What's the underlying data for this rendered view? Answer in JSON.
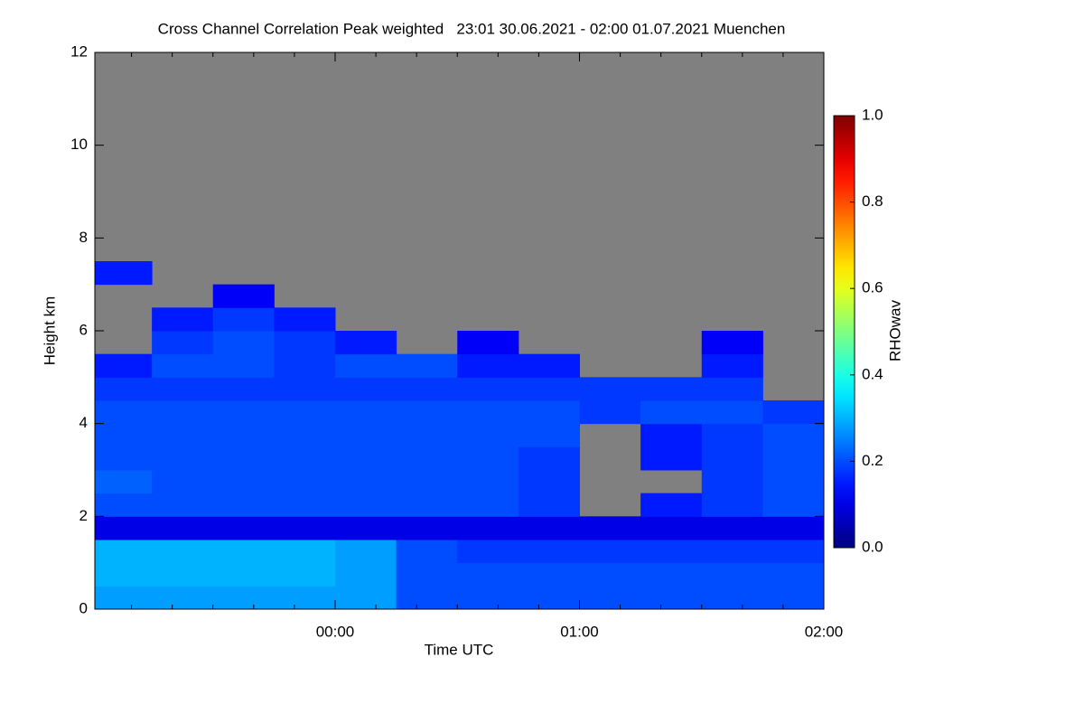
{
  "chart_data": {
    "type": "heatmap",
    "title": "Cross Channel Correlation Peak weighted   23:01 30.06.2021 - 02:00 01.07.2021 Muenchen",
    "xlabel": "Time UTC",
    "ylabel": "Height km",
    "colorbar_label": "RHOwav",
    "xlim": [
      0.0167,
      3.0
    ],
    "xticks": [
      {
        "value": 1,
        "label": "00:00"
      },
      {
        "value": 2,
        "label": "01:00"
      },
      {
        "value": 3,
        "label": "02:00"
      }
    ],
    "xminorticks": [
      0.1667,
      0.3333,
      0.5,
      0.6667,
      0.8333,
      1.1667,
      1.3333,
      1.5,
      1.6667,
      1.8333,
      2.1667,
      2.3333,
      2.5,
      2.6667,
      2.8333
    ],
    "ylim": [
      0,
      12
    ],
    "yticks": [
      0,
      2,
      4,
      6,
      8,
      10,
      12
    ],
    "clim": [
      0,
      1
    ],
    "cticks": [
      {
        "value": 0,
        "label": "0.0"
      },
      0.2,
      0.4,
      0.6,
      0.8,
      {
        "value": 1,
        "label": "1.0"
      }
    ],
    "colormap": "jet",
    "nodata_color": "#808080",
    "xbins": [
      0.0167,
      0.25,
      0.5,
      0.75,
      1,
      1.25,
      1.5,
      1.75,
      2,
      2.25,
      2.5,
      2.75,
      3
    ],
    "ybins": [
      0,
      0.5,
      1,
      1.5,
      2,
      2.5,
      3,
      3.5,
      4,
      4.5,
      5,
      5.5,
      6,
      6.5,
      7,
      7.5,
      8
    ],
    "z": [
      [
        0.28,
        0.28,
        0.28,
        0.28,
        0.28,
        0.2,
        0.2,
        0.2,
        0.2,
        0.2,
        0.2,
        0.2
      ],
      [
        0.3,
        0.3,
        0.3,
        0.3,
        0.28,
        0.2,
        0.2,
        0.2,
        0.2,
        0.2,
        0.2,
        0.2
      ],
      [
        0.3,
        0.3,
        0.3,
        0.3,
        0.28,
        0.2,
        0.18,
        0.18,
        0.18,
        0.18,
        0.18,
        0.18
      ],
      [
        0.1,
        0.1,
        0.1,
        0.1,
        0.1,
        0.1,
        0.1,
        0.1,
        0.1,
        0.1,
        0.1,
        0.1
      ],
      [
        0.2,
        0.2,
        0.2,
        0.2,
        0.2,
        0.2,
        0.2,
        0.18,
        null,
        0.15,
        0.18,
        0.2
      ],
      [
        0.22,
        0.2,
        0.2,
        0.2,
        0.2,
        0.2,
        0.2,
        0.18,
        null,
        null,
        0.18,
        0.2
      ],
      [
        0.2,
        0.2,
        0.2,
        0.2,
        0.2,
        0.2,
        0.2,
        0.18,
        null,
        0.15,
        0.18,
        0.2
      ],
      [
        0.2,
        0.2,
        0.2,
        0.2,
        0.2,
        0.2,
        0.2,
        0.2,
        null,
        0.15,
        0.18,
        0.2
      ],
      [
        0.2,
        0.2,
        0.2,
        0.2,
        0.2,
        0.2,
        0.2,
        0.2,
        0.18,
        0.2,
        0.2,
        0.18
      ],
      [
        0.18,
        0.18,
        0.18,
        0.18,
        0.18,
        0.18,
        0.18,
        0.18,
        0.18,
        0.18,
        0.18,
        null
      ],
      [
        0.15,
        0.2,
        0.2,
        0.18,
        0.2,
        0.2,
        0.15,
        0.15,
        null,
        null,
        0.15,
        null
      ],
      [
        null,
        0.18,
        0.2,
        0.18,
        0.15,
        null,
        0.12,
        null,
        null,
        null,
        0.12,
        null
      ],
      [
        null,
        0.15,
        0.18,
        0.15,
        null,
        null,
        null,
        null,
        null,
        null,
        null,
        null
      ],
      [
        null,
        null,
        0.12,
        null,
        null,
        null,
        null,
        null,
        null,
        null,
        null,
        null
      ],
      [
        0.15,
        null,
        null,
        null,
        null,
        null,
        null,
        null,
        null,
        null,
        null,
        null
      ],
      [
        null,
        null,
        null,
        null,
        null,
        null,
        null,
        null,
        null,
        null,
        null,
        null
      ]
    ]
  }
}
